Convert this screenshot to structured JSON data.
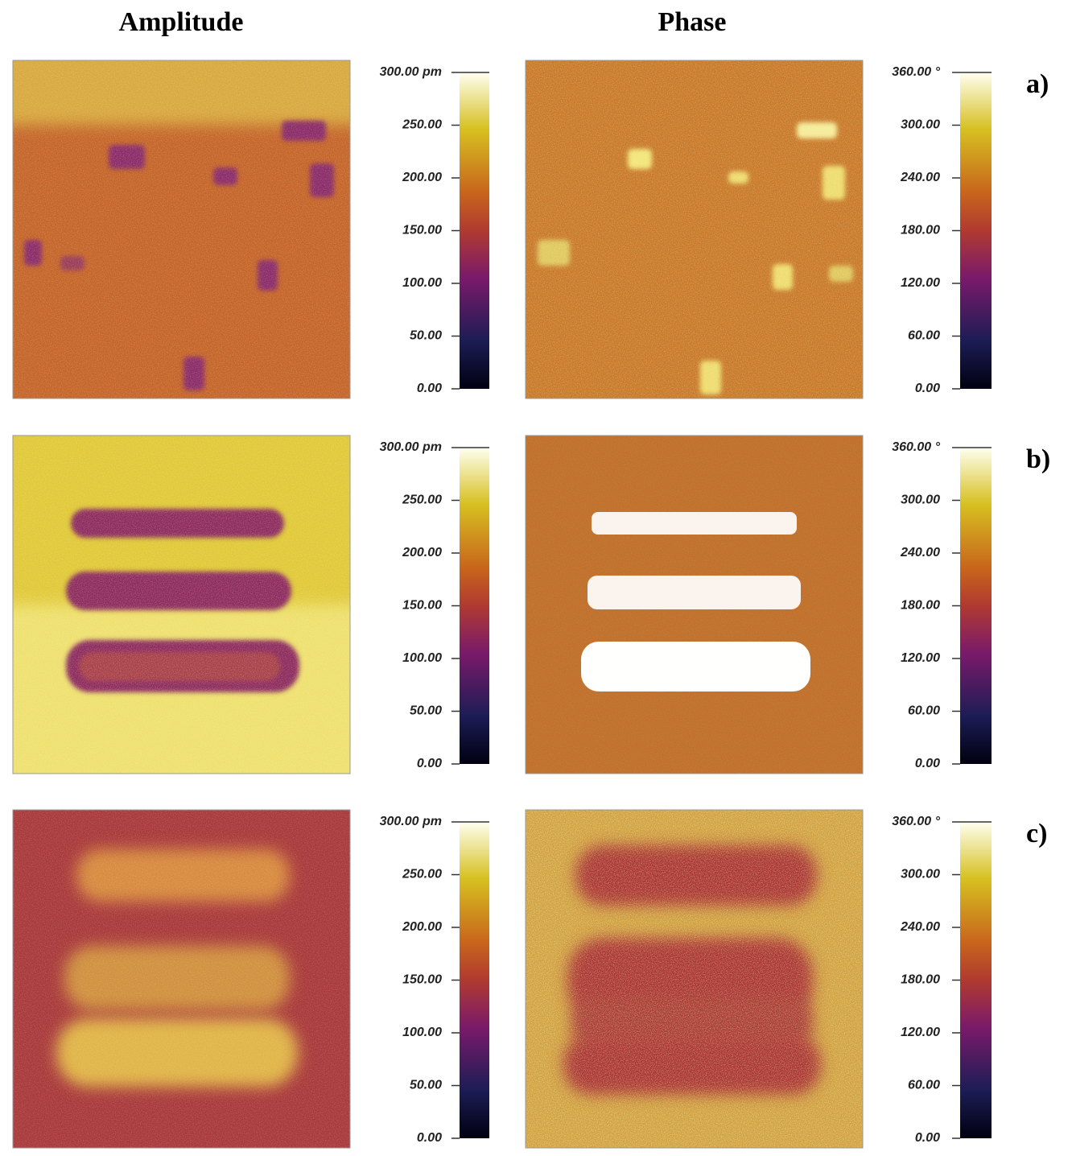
{
  "columns": [
    "Amplitude",
    "Phase"
  ],
  "row_labels": [
    "a)",
    "b)",
    "c)"
  ],
  "colorbars": {
    "amplitude": {
      "lim": [
        0,
        300
      ],
      "ticks": [
        {
          "value": 0,
          "label": "0.00"
        },
        {
          "value": 50,
          "label": "50.00"
        },
        {
          "value": 100,
          "label": "100.00"
        },
        {
          "value": 150,
          "label": "150.00"
        },
        {
          "value": 200,
          "label": "200.00"
        },
        {
          "value": 250,
          "label": "250.00"
        },
        {
          "value": 300,
          "label": "300.00 pm"
        }
      ]
    },
    "phase": {
      "lim": [
        0,
        360
      ],
      "ticks": [
        {
          "value": 0,
          "label": "0.00"
        },
        {
          "value": 60,
          "label": "60.00"
        },
        {
          "value": 120,
          "label": "120.00"
        },
        {
          "value": 180,
          "label": "180.00"
        },
        {
          "value": 240,
          "label": "240.00"
        },
        {
          "value": 300,
          "label": "300.00"
        },
        {
          "value": 360,
          "label": "360.00 °"
        }
      ]
    }
  }
}
